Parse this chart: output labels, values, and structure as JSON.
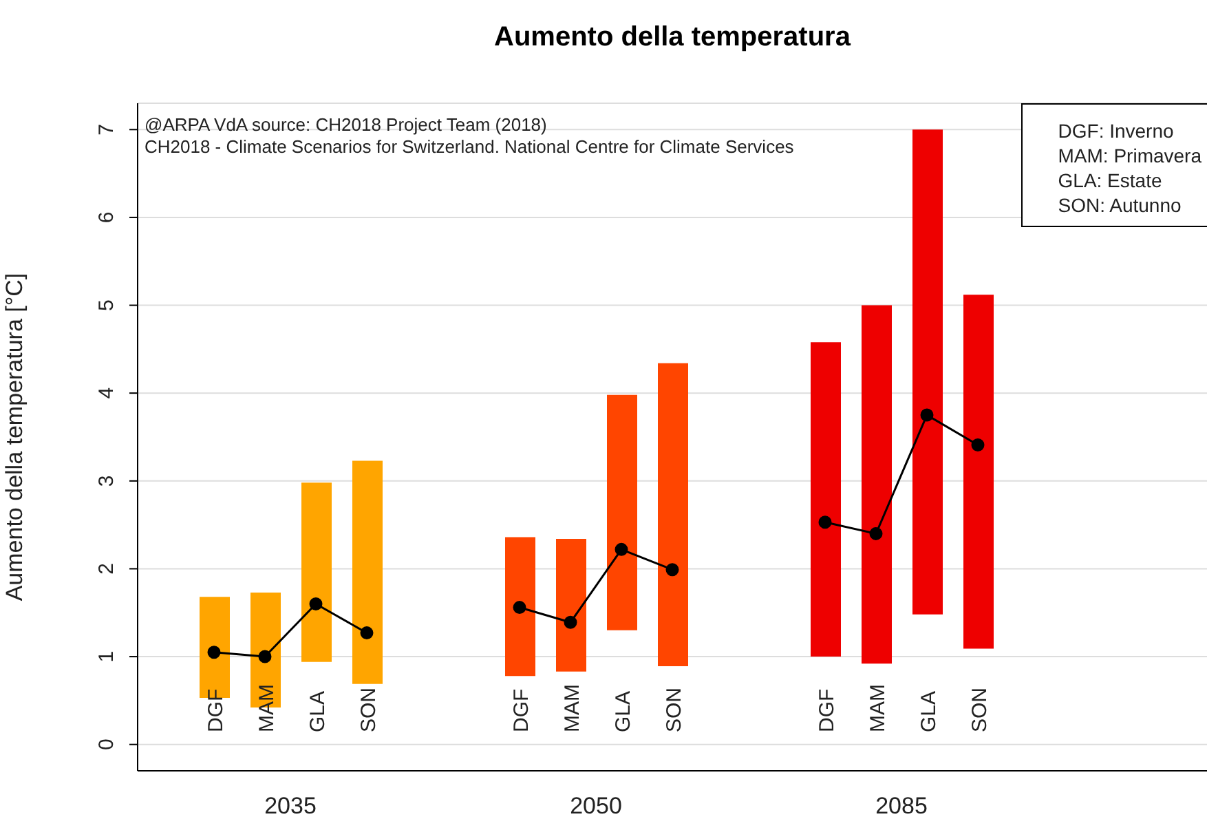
{
  "chart_data": {
    "type": "bar",
    "title": "Aumento della temperatura",
    "ylabel": "Aumento della temperatura [°C]",
    "categories": [
      null,
      "DGF",
      "MAM",
      "GLA",
      "SON",
      null,
      null,
      "DGF",
      "MAM",
      "GLA",
      "SON",
      null,
      null,
      "DGF",
      "MAM",
      "GLA",
      "SON",
      null,
      null,
      null,
      null
    ],
    "series": [
      {
        "values": [
          null,
          1.15,
          1.31,
          2.04,
          2.54,
          null,
          null,
          1.58,
          1.51,
          2.68,
          3.45,
          null,
          null,
          3.58,
          4.08,
          5.52,
          4.03,
          null,
          null,
          null,
          null
        ],
        "base": [
          null,
          0.53,
          0.42,
          0.94,
          0.69,
          null,
          null,
          0.78,
          0.83,
          1.3,
          0.89,
          null,
          null,
          1.0,
          0.92,
          1.48,
          1.09,
          null,
          null,
          null,
          null
        ],
        "colors": [
          null,
          "#ffa500",
          "#ffa500",
          "#ffa500",
          "#ffa500",
          null,
          null,
          "#ff4500",
          "#ff4500",
          "#ff4500",
          "#ff4500",
          null,
          null,
          "#ee0000",
          "#ee0000",
          "#ee0000",
          "#ee0000",
          null,
          null,
          null,
          null
        ]
      },
      {
        "type": "line",
        "color": "#000000",
        "marker": "circle",
        "values": [
          null,
          1.05,
          1.0,
          1.6,
          1.27,
          null,
          null,
          1.56,
          1.39,
          2.22,
          1.99,
          null,
          null,
          2.53,
          2.4,
          3.75,
          3.41,
          null,
          null,
          null,
          null
        ]
      }
    ],
    "ylim": [
      -0.3,
      7.3
    ],
    "yticks": [
      0,
      1,
      2,
      3,
      4,
      5,
      6,
      7
    ],
    "grid": "y",
    "annotations": [
      "@ARPA VdA source: CH2018 Project Team (2018)",
      "CH2018 - Climate Scenarios for Switzerland. National Centre for Climate Services",
      "2035",
      "2050",
      "2085",
      "DGF: Inverno",
      "MAM: Primavera",
      "GLA: Estate",
      "SON: Autunno"
    ]
  }
}
